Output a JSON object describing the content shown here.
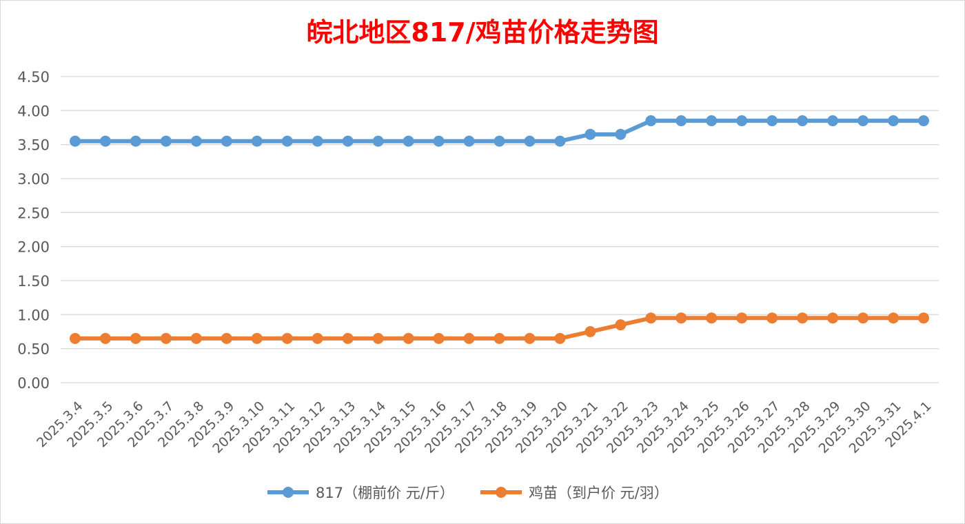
{
  "chart_data": {
    "type": "line",
    "title": "皖北地区817/鸡苗价格走势图",
    "xlabel": "",
    "ylabel": "",
    "ylim": [
      0,
      4.5
    ],
    "ytick_labels": [
      "0.00",
      "0.50",
      "1.00",
      "1.50",
      "2.00",
      "2.50",
      "3.00",
      "3.50",
      "4.00",
      "4.50"
    ],
    "grid": true,
    "legend_position": "bottom",
    "categories": [
      "2025.3.4",
      "2025.3.5",
      "2025.3.6",
      "2025.3.7",
      "2025.3.8",
      "2025.3.9",
      "2025.3.10",
      "2025.3.11",
      "2025.3.12",
      "2025.3.13",
      "2025.3.14",
      "2025.3.15",
      "2025.3.16",
      "2025.3.17",
      "2025.3.18",
      "2025.3.19",
      "2025.3.20",
      "2025.3.21",
      "2025.3.22",
      "2025.3.23",
      "2025.3.24",
      "2025.3.25",
      "2025.3.26",
      "2025.3.27",
      "2025.3.28",
      "2025.3.29",
      "2025.3.30",
      "2025.3.31",
      "2025.4.1"
    ],
    "series": [
      {
        "name": "817（棚前价 元/斤）",
        "color": "#5B9BD5",
        "values": [
          3.55,
          3.55,
          3.55,
          3.55,
          3.55,
          3.55,
          3.55,
          3.55,
          3.55,
          3.55,
          3.55,
          3.55,
          3.55,
          3.55,
          3.55,
          3.55,
          3.55,
          3.65,
          3.65,
          3.85,
          3.85,
          3.85,
          3.85,
          3.85,
          3.85,
          3.85,
          3.85,
          3.85,
          3.85
        ]
      },
      {
        "name": "鸡苗（到户价 元/羽）",
        "color": "#ED7D31",
        "values": [
          0.65,
          0.65,
          0.65,
          0.65,
          0.65,
          0.65,
          0.65,
          0.65,
          0.65,
          0.65,
          0.65,
          0.65,
          0.65,
          0.65,
          0.65,
          0.65,
          0.65,
          0.75,
          0.85,
          0.95,
          0.95,
          0.95,
          0.95,
          0.95,
          0.95,
          0.95,
          0.95,
          0.95,
          0.95
        ]
      }
    ],
    "title_color": "#FF0000",
    "grid_color": "#D9D9D9",
    "text_color": "#595959"
  }
}
